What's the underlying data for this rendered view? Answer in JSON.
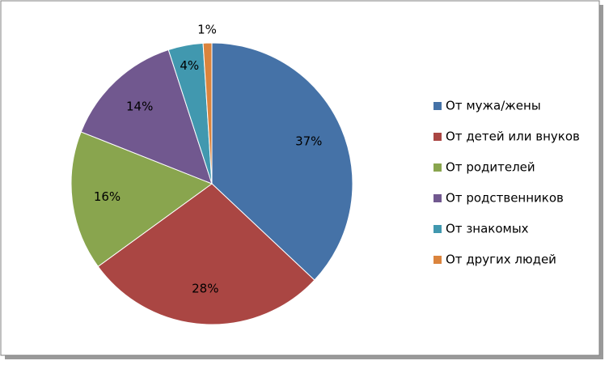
{
  "chart_data": {
    "type": "pie",
    "categories": [
      "От мужа/жены",
      "От детей или внуков",
      "От родителей",
      "От родственников",
      "От знакомых",
      "От других людей"
    ],
    "values": [
      37,
      28,
      16,
      14,
      4,
      1
    ],
    "value_labels": [
      "37%",
      "28%",
      "16%",
      "14%",
      "4%",
      "1%"
    ],
    "colors": [
      "#4572a7",
      "#aa4643",
      "#89a54e",
      "#71588f",
      "#4198af",
      "#db843d"
    ],
    "legend": "right"
  }
}
